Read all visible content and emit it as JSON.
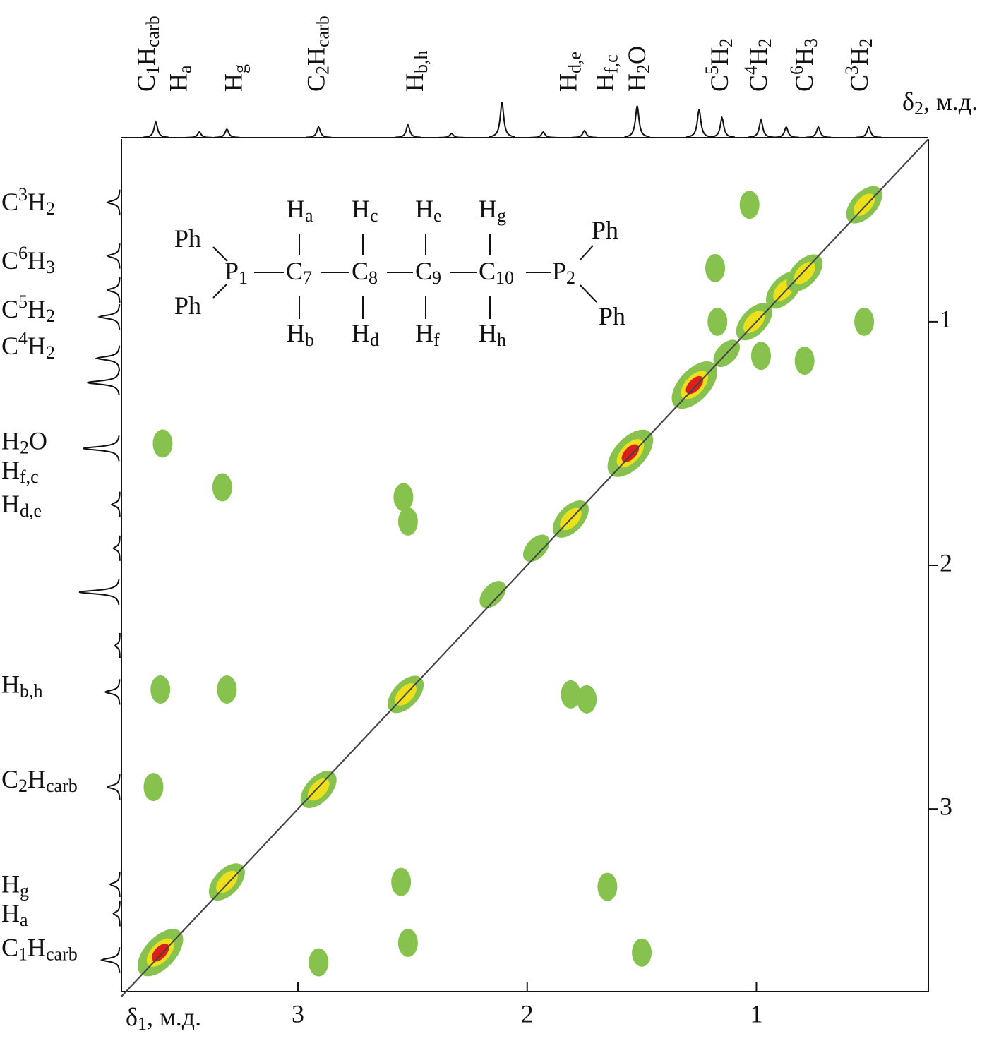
{
  "chart_data": {
    "type": "contour",
    "xlabel": [
      {
        "text": "δ"
      },
      {
        "text": "1",
        "sub": true
      },
      {
        "text": ", м.д."
      }
    ],
    "ylabel": [
      {
        "text": "δ"
      },
      {
        "text": "2",
        "sub": true
      },
      {
        "text": ", м.д."
      }
    ],
    "xlim": [
      3.77,
      0.25
    ],
    "ylim": [
      0.25,
      3.75
    ],
    "xticks": [
      3,
      2,
      1
    ],
    "yticks": [
      1,
      2,
      3
    ],
    "diagonal": true,
    "contour_colors": [
      "#86c24d",
      "#ece01c",
      "#dd1f1b"
    ],
    "peaks": {
      "x": [
        3.6,
        3.31,
        2.91,
        2.53,
        1.81,
        1.55,
        1.27,
        1.01,
        0.88,
        0.79,
        0.53,
        2.15,
        1.96,
        1.13,
        3.59,
        3.33,
        2.54,
        2.52,
        3.6,
        3.31,
        1.81,
        1.74,
        3.63,
        2.91,
        2.55,
        1.65,
        1.5,
        2.52,
        1.18,
        1.03,
        1.17,
        0.98,
        0.79,
        0.53
      ],
      "y": [
        3.59,
        3.3,
        2.92,
        2.53,
        1.81,
        1.54,
        1.26,
        1.0,
        0.87,
        0.8,
        0.52,
        2.12,
        1.93,
        1.13,
        1.5,
        1.68,
        1.72,
        1.82,
        2.51,
        2.51,
        2.53,
        2.55,
        2.91,
        3.63,
        3.3,
        3.32,
        3.59,
        3.55,
        0.78,
        0.52,
        1.0,
        1.14,
        1.16,
        1.0
      ],
      "intensity": [
        3,
        2,
        2,
        2,
        2,
        3,
        3,
        2,
        2,
        2,
        2,
        1,
        1,
        1,
        1,
        1,
        1,
        1,
        1,
        1,
        1,
        1,
        1,
        1,
        1,
        1,
        1,
        1,
        1,
        1,
        1,
        1,
        1,
        1
      ]
    },
    "projection": {
      "x": [
        3.62,
        3.43,
        3.31,
        2.91,
        2.52,
        2.33,
        2.11,
        1.93,
        1.75,
        1.52,
        1.25,
        1.15,
        0.98,
        0.87,
        0.73,
        0.51
      ],
      "values": [
        0.44,
        0.16,
        0.24,
        0.3,
        0.36,
        0.12,
        1,
        0.16,
        0.2,
        0.9,
        0.8,
        0.56,
        0.5,
        0.3,
        0.3,
        0.3
      ]
    },
    "x_peak_labels": [
      {
        "position": 3.65,
        "segments": [
          {
            "text": "C"
          },
          {
            "text": "1",
            "sub": true
          },
          {
            "text": "H"
          },
          {
            "text": "carb",
            "sub": true
          }
        ]
      },
      {
        "position": 3.51,
        "segments": [
          {
            "text": "H"
          },
          {
            "text": "a",
            "sub": true
          }
        ]
      },
      {
        "position": 3.27,
        "segments": [
          {
            "text": "H"
          },
          {
            "text": "g",
            "sub": true
          }
        ]
      },
      {
        "position": 2.91,
        "segments": [
          {
            "text": "C"
          },
          {
            "text": "2",
            "sub": true
          },
          {
            "text": "H"
          },
          {
            "text": "carb",
            "sub": true
          }
        ]
      },
      {
        "position": 2.48,
        "segments": [
          {
            "text": "H"
          },
          {
            "text": "b,h",
            "sub": true
          }
        ]
      },
      {
        "position": 1.81,
        "segments": [
          {
            "text": "H"
          },
          {
            "text": "d,e",
            "sub": true
          }
        ]
      },
      {
        "position": 1.65,
        "segments": [
          {
            "text": "H"
          },
          {
            "text": "f,c",
            "sub": true
          }
        ]
      },
      {
        "position": 1.51,
        "segments": [
          {
            "text": "H"
          },
          {
            "text": "2",
            "sub": true
          },
          {
            "text": "O"
          }
        ]
      },
      {
        "position": 1.15,
        "segments": [
          {
            "text": "C"
          },
          {
            "text": "5",
            "sup": true
          },
          {
            "text": "H"
          },
          {
            "text": "2",
            "sub": true
          }
        ]
      },
      {
        "position": 0.98,
        "segments": [
          {
            "text": "C"
          },
          {
            "text": "4",
            "sup": true
          },
          {
            "text": "H"
          },
          {
            "text": "2",
            "sub": true
          }
        ]
      },
      {
        "position": 0.78,
        "segments": [
          {
            "text": "C"
          },
          {
            "text": "6",
            "sup": true
          },
          {
            "text": "H"
          },
          {
            "text": "3",
            "sub": true
          }
        ]
      },
      {
        "position": 0.54,
        "segments": [
          {
            "text": "C"
          },
          {
            "text": "3",
            "sup": true
          },
          {
            "text": "H"
          },
          {
            "text": "2",
            "sub": true
          }
        ]
      }
    ],
    "y_peak_labels": [
      {
        "position": 0.52,
        "segments": [
          {
            "text": "C"
          },
          {
            "text": "3",
            "sup": true
          },
          {
            "text": "H"
          },
          {
            "text": "2",
            "sub": true
          }
        ]
      },
      {
        "position": 0.76,
        "segments": [
          {
            "text": "C"
          },
          {
            "text": "6",
            "sup": true
          },
          {
            "text": "H"
          },
          {
            "text": "3",
            "sub": true
          }
        ]
      },
      {
        "position": 0.96,
        "segments": [
          {
            "text": "C"
          },
          {
            "text": "5",
            "sup": true
          },
          {
            "text": "H"
          },
          {
            "text": "2",
            "sub": true
          }
        ]
      },
      {
        "position": 1.11,
        "segments": [
          {
            "text": "C"
          },
          {
            "text": "4",
            "sup": true
          },
          {
            "text": "H"
          },
          {
            "text": "2",
            "sub": true
          }
        ]
      },
      {
        "position": 1.5,
        "segments": [
          {
            "text": "H"
          },
          {
            "text": "2",
            "sub": true
          },
          {
            "text": "O"
          }
        ]
      },
      {
        "position": 1.62,
        "segments": [
          {
            "text": "H"
          },
          {
            "text": "f,c",
            "sub": true
          }
        ]
      },
      {
        "position": 1.76,
        "segments": [
          {
            "text": "H"
          },
          {
            "text": "d,e",
            "sub": true
          }
        ]
      },
      {
        "position": 2.5,
        "segments": [
          {
            "text": "H"
          },
          {
            "text": "b,h",
            "sub": true
          }
        ]
      },
      {
        "position": 2.89,
        "segments": [
          {
            "text": "C"
          },
          {
            "text": "2",
            "sub": true
          },
          {
            "text": "H"
          },
          {
            "text": "carb",
            "sub": true
          }
        ]
      },
      {
        "position": 3.32,
        "segments": [
          {
            "text": "H"
          },
          {
            "text": "g",
            "sub": true
          }
        ]
      },
      {
        "position": 3.44,
        "segments": [
          {
            "text": "H"
          },
          {
            "text": "a",
            "sub": true
          }
        ]
      },
      {
        "position": 3.58,
        "segments": [
          {
            "text": "C"
          },
          {
            "text": "1",
            "sub": true
          },
          {
            "text": "H"
          },
          {
            "text": "carb",
            "sub": true
          }
        ]
      }
    ]
  },
  "structure": {
    "labels": [
      [
        {
          "text": "Ph"
        }
      ],
      [
        {
          "text": "Ph"
        }
      ],
      [
        {
          "text": "P"
        },
        {
          "text": "1",
          "sub": true
        }
      ],
      [
        {
          "text": "C"
        },
        {
          "text": "7",
          "sub": true
        }
      ],
      [
        {
          "text": "C"
        },
        {
          "text": "8",
          "sub": true
        }
      ],
      [
        {
          "text": "C"
        },
        {
          "text": "9",
          "sub": true
        }
      ],
      [
        {
          "text": "C"
        },
        {
          "text": "10",
          "sub": true
        }
      ],
      [
        {
          "text": "P"
        },
        {
          "text": "2",
          "sub": true
        }
      ],
      [
        {
          "text": "Ph"
        }
      ],
      [
        {
          "text": "Ph"
        }
      ],
      [
        {
          "text": "H"
        },
        {
          "text": "a",
          "sub": true
        }
      ],
      [
        {
          "text": "H"
        },
        {
          "text": "c",
          "sub": true
        }
      ],
      [
        {
          "text": "H"
        },
        {
          "text": "e",
          "sub": true
        }
      ],
      [
        {
          "text": "H"
        },
        {
          "text": "g",
          "sub": true
        }
      ],
      [
        {
          "text": "H"
        },
        {
          "text": "b",
          "sub": true
        }
      ],
      [
        {
          "text": "H"
        },
        {
          "text": "d",
          "sub": true
        }
      ],
      [
        {
          "text": "H"
        },
        {
          "text": "f",
          "sub": true
        }
      ],
      [
        {
          "text": "H"
        },
        {
          "text": "h",
          "sub": true
        }
      ]
    ]
  }
}
